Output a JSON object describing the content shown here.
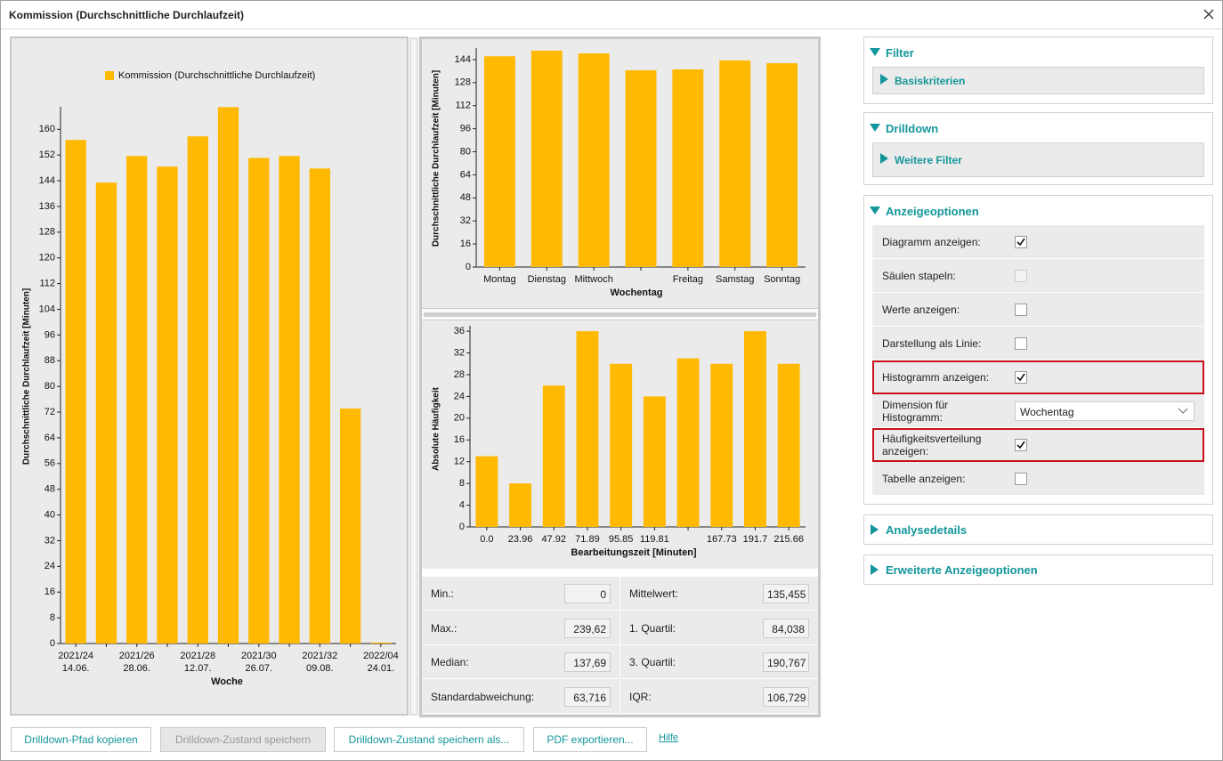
{
  "window": {
    "title": "Kommission (Durchschnittliche Durchlaufzeit)"
  },
  "chart_data": [
    {
      "type": "bar",
      "series": [
        {
          "name": "Kommission (Durchschnittliche Durchlaufzeit)",
          "color": "#ffb900",
          "values": [
            156.7,
            143.4,
            151.7,
            148.4,
            157.8,
            166.9,
            151.1,
            151.7,
            147.8,
            73.1,
            0.3
          ]
        }
      ],
      "categories": [
        "2021/24",
        null,
        "2021/26",
        null,
        "2021/28",
        null,
        "2021/30",
        null,
        "2021/32",
        null,
        "2022/04"
      ],
      "category_sublabels": [
        "14.06.",
        null,
        "28.06.",
        null,
        "12.07.",
        null,
        "26.07.",
        null,
        "09.08.",
        null,
        "24.01."
      ],
      "y_label": "Durchschnittliche Durchlaufzeit [Minuten]",
      "x_label": "Woche",
      "ylim": [
        0,
        167
      ],
      "yticks": [
        0,
        8,
        16,
        24,
        32,
        40,
        48,
        56,
        64,
        72,
        80,
        88,
        96,
        104,
        112,
        120,
        128,
        136,
        144,
        152,
        160
      ],
      "legend": "top"
    },
    {
      "type": "bar",
      "color": "#ffb900",
      "categories": [
        "Montag",
        "Dienstag",
        "Mittwoch",
        null,
        "Freitag",
        "Samstag",
        "Sonntag"
      ],
      "values": [
        146.3,
        150.2,
        148.3,
        136.6,
        137.2,
        143.4,
        141.5
      ],
      "y_label": "Durchschnittliche Durchlaufzeit [Minuten]",
      "x_label": "Wochentag",
      "ylim": [
        0,
        152
      ],
      "yticks": [
        0,
        16,
        32,
        48,
        64,
        80,
        96,
        112,
        128,
        144
      ]
    },
    {
      "type": "bar",
      "color": "#ffb900",
      "categories": [
        "0.0",
        "23.96",
        "47.92",
        "71.89",
        "95.85",
        "119.81",
        null,
        "167.73",
        "191.7",
        "215.66"
      ],
      "values": [
        13,
        8,
        26,
        36,
        30,
        24,
        31,
        30,
        36,
        30
      ],
      "y_label": "Absolute Häufigkeit",
      "x_label": "Bearbeitungszeit [Minuten]",
      "ylim": [
        0,
        37
      ],
      "yticks": [
        0,
        4,
        8,
        12,
        16,
        20,
        24,
        28,
        32,
        36
      ]
    }
  ],
  "stats": [
    [
      {
        "label": "Min.:",
        "value": "0"
      },
      {
        "label": "Mittelwert:",
        "value": "135,455"
      }
    ],
    [
      {
        "label": "Max.:",
        "value": "239,62"
      },
      {
        "label": "1. Quartil:",
        "value": "84,038"
      }
    ],
    [
      {
        "label": "Median:",
        "value": "137,69"
      },
      {
        "label": "3. Quartil:",
        "value": "190,767"
      }
    ],
    [
      {
        "label": "Standardabweichung:",
        "value": "63,716"
      },
      {
        "label": "IQR:",
        "value": "106,729"
      }
    ]
  ],
  "options": [
    {
      "title": "Filter",
      "expanded": true,
      "subsections": [
        "Basiskriterien"
      ]
    },
    {
      "title": "Drilldown",
      "expanded": true,
      "subsections": [
        "Weitere Filter"
      ]
    },
    {
      "title": "Anzeigeoptionen",
      "expanded": true,
      "rows": [
        {
          "label": "Diagramm anzeigen:",
          "checked": true
        },
        {
          "label": "Säulen stapeln:",
          "checked": false,
          "disabled": true
        },
        {
          "label": "Werte anzeigen:",
          "checked": false
        },
        {
          "label": "Darstellung als Linie:",
          "checked": false
        },
        {
          "label": "Histogramm anzeigen:",
          "checked": true,
          "highlighted": true
        },
        {
          "label": "Dimension für Histogramm:",
          "select": "Wochentag"
        },
        {
          "label": "Häufigkeitsverteilung anzeigen:",
          "checked": true,
          "highlighted": true
        },
        {
          "label": "Tabelle anzeigen:",
          "checked": false
        }
      ]
    },
    {
      "title": "Analysedetails",
      "expanded": false
    },
    {
      "title": "Erweiterte Anzeigeoptionen",
      "expanded": false
    }
  ],
  "buttons": [
    {
      "label": "Drilldown-Pfad kopieren",
      "disabled": false
    },
    {
      "label": "Drilldown-Zustand speichern",
      "disabled": true
    },
    {
      "label": "Drilldown-Zustand speichern als...",
      "disabled": false
    },
    {
      "label": "PDF exportieren...",
      "disabled": false
    }
  ],
  "help_link": "Hilfe"
}
